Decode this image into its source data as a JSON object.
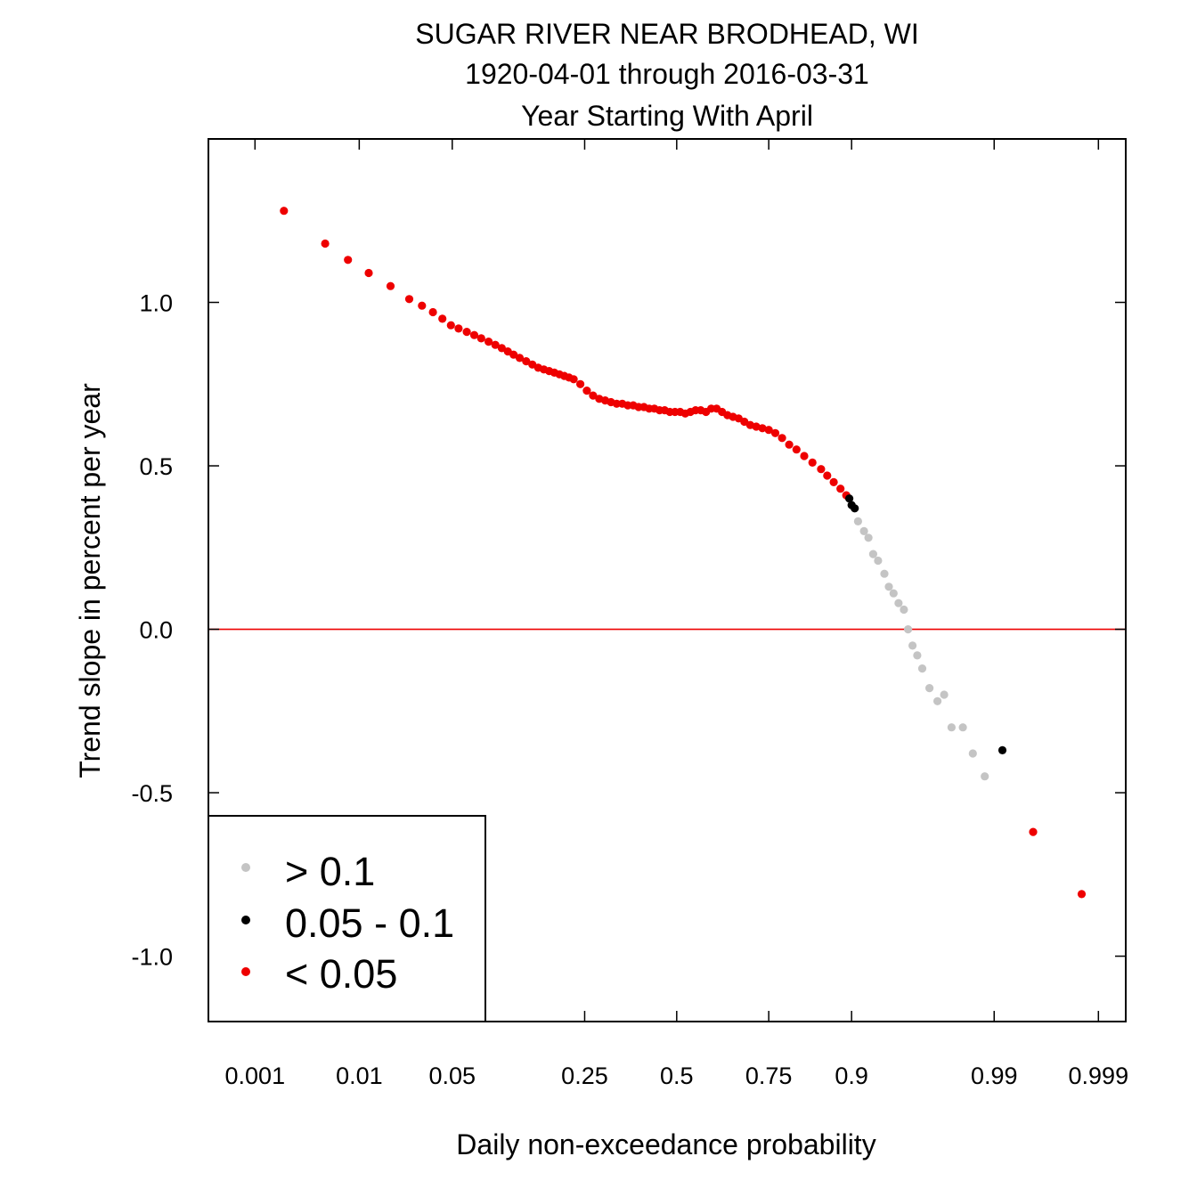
{
  "chart_data": {
    "type": "scatter",
    "title": "SUGAR RIVER NEAR BRODHEAD, WI",
    "subtitle": "1920-04-01 through 2016-03-31",
    "subtitle2": "Year Starting With April",
    "xlabel": "Daily non-exceedance probability",
    "ylabel": "Trend slope in percent per year",
    "x_scale": "normal-probability",
    "xlim": [
      0.0003,
      0.9995
    ],
    "ylim": [
      -1.2,
      1.5
    ],
    "x_ticks": [
      0.001,
      0.01,
      0.05,
      0.25,
      0.5,
      0.75,
      0.9,
      0.99,
      0.999
    ],
    "x_tick_labels": [
      "0.001",
      "0.01",
      "0.05",
      "0.25",
      "0.5",
      "0.75",
      "0.9",
      "0.99",
      "0.999"
    ],
    "y_ticks": [
      -1.0,
      -0.5,
      0.0,
      0.5,
      1.0
    ],
    "y_tick_labels": [
      "-1.0",
      "-0.5",
      "0.0",
      "0.5",
      "1.0"
    ],
    "reference_line": {
      "y": 0.0,
      "color": "#ee0000"
    },
    "grid": false,
    "legend": {
      "position": "bottom-left",
      "entries": [
        {
          "label": "> 0.1",
          "color": "#c4c4c4"
        },
        {
          "label": "0.05 - 0.1",
          "color": "#000000"
        },
        {
          "label": "< 0.05",
          "color": "#ee0000"
        }
      ]
    },
    "colors": {
      "gt_0_1": "#c4c4c4",
      "p_05_1": "#000000",
      "lt_0_05": "#ee0000",
      "zero_line": "#ee0000"
    },
    "series": [
      {
        "name": "< 0.05",
        "color": "#ee0000",
        "x": [
          0.002,
          0.005,
          0.008,
          0.012,
          0.018,
          0.025,
          0.031,
          0.037,
          0.043,
          0.049,
          0.055,
          0.062,
          0.069,
          0.076,
          0.084,
          0.092,
          0.1,
          0.108,
          0.116,
          0.125,
          0.135,
          0.145,
          0.155,
          0.165,
          0.175,
          0.185,
          0.195,
          0.205,
          0.215,
          0.225,
          0.24,
          0.255,
          0.27,
          0.285,
          0.3,
          0.315,
          0.33,
          0.345,
          0.36,
          0.375,
          0.39,
          0.405,
          0.42,
          0.435,
          0.45,
          0.465,
          0.48,
          0.495,
          0.51,
          0.525,
          0.54,
          0.555,
          0.57,
          0.585,
          0.6,
          0.615,
          0.63,
          0.645,
          0.66,
          0.675,
          0.69,
          0.705,
          0.72,
          0.735,
          0.75,
          0.765,
          0.78,
          0.795,
          0.81,
          0.825,
          0.84,
          0.855,
          0.865,
          0.875,
          0.885,
          0.893,
          0.9955,
          0.9985
        ],
        "y": [
          1.28,
          1.18,
          1.13,
          1.09,
          1.05,
          1.01,
          0.99,
          0.97,
          0.95,
          0.93,
          0.92,
          0.91,
          0.9,
          0.89,
          0.88,
          0.87,
          0.86,
          0.85,
          0.84,
          0.83,
          0.82,
          0.81,
          0.8,
          0.795,
          0.79,
          0.785,
          0.78,
          0.775,
          0.77,
          0.765,
          0.75,
          0.73,
          0.715,
          0.705,
          0.7,
          0.695,
          0.69,
          0.69,
          0.685,
          0.685,
          0.68,
          0.68,
          0.675,
          0.675,
          0.67,
          0.67,
          0.665,
          0.665,
          0.665,
          0.66,
          0.665,
          0.67,
          0.67,
          0.665,
          0.675,
          0.675,
          0.665,
          0.655,
          0.65,
          0.645,
          0.635,
          0.625,
          0.62,
          0.615,
          0.61,
          0.6,
          0.585,
          0.565,
          0.55,
          0.53,
          0.51,
          0.49,
          0.47,
          0.45,
          0.43,
          0.41,
          -0.62,
          -0.81
        ]
      },
      {
        "name": "0.05 - 0.1",
        "color": "#000000",
        "x": [
          0.897,
          0.9,
          0.904,
          0.9915
        ],
        "y": [
          0.4,
          0.38,
          0.37,
          -0.37
        ]
      },
      {
        "name": "> 0.1",
        "color": "#c4c4c4",
        "x": [
          0.908,
          0.915,
          0.92,
          0.925,
          0.93,
          0.936,
          0.94,
          0.944,
          0.948,
          0.952,
          0.955,
          0.958,
          0.961,
          0.964,
          0.968,
          0.972,
          0.975,
          0.978,
          0.982,
          0.985,
          0.988
        ],
        "y": [
          0.33,
          0.3,
          0.28,
          0.23,
          0.21,
          0.17,
          0.13,
          0.11,
          0.08,
          0.06,
          0.0,
          -0.05,
          -0.08,
          -0.12,
          -0.18,
          -0.22,
          -0.2,
          -0.3,
          -0.3,
          -0.38,
          -0.45
        ]
      }
    ]
  }
}
